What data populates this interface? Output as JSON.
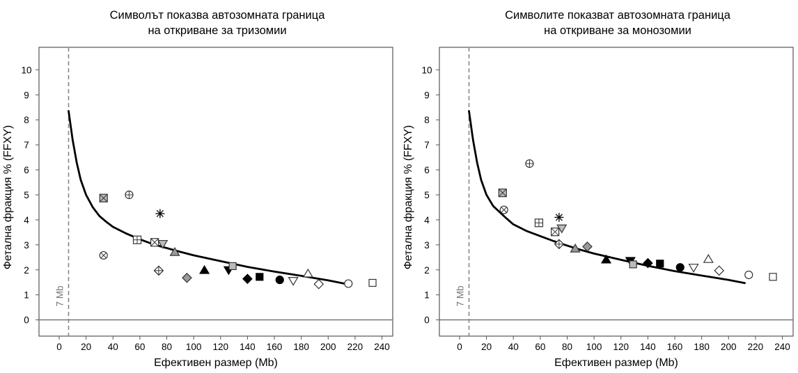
{
  "chart_data": [
    {
      "type": "scatter",
      "title_lines": [
        "Символът показва автозомната граница",
        "на откриване за тризомии"
      ],
      "xlabel": "Ефективен размер (Mb)",
      "ylabel": "Фетална фракция % (FFXY)",
      "xlim": [
        -15,
        248
      ],
      "ylim": [
        -0.65,
        10.9
      ],
      "xticks": [
        "0",
        "20",
        "40",
        "60",
        "80",
        "100",
        "120",
        "140",
        "160",
        "180",
        "200",
        "220",
        "240"
      ],
      "yticks": [
        "0",
        "1",
        "2",
        "3",
        "4",
        "5",
        "6",
        "7",
        "8",
        "9",
        "10"
      ],
      "grid": false,
      "reference_line": {
        "x": 7,
        "label": "7 Mb"
      },
      "zero_line": {
        "y": 0
      },
      "curve": [
        [
          7,
          8.35
        ],
        [
          10,
          7.2
        ],
        [
          13,
          6.3
        ],
        [
          16,
          5.6
        ],
        [
          20,
          5.0
        ],
        [
          25,
          4.5
        ],
        [
          30,
          4.15
        ],
        [
          35,
          3.92
        ],
        [
          40,
          3.72
        ],
        [
          50,
          3.45
        ],
        [
          60,
          3.22
        ],
        [
          70,
          3.02
        ],
        [
          80,
          2.87
        ],
        [
          90,
          2.72
        ],
        [
          100,
          2.58
        ],
        [
          120,
          2.35
        ],
        [
          140,
          2.12
        ],
        [
          160,
          1.93
        ],
        [
          180,
          1.76
        ],
        [
          200,
          1.58
        ],
        [
          212,
          1.45
        ]
      ],
      "points": [
        {
          "x": 33,
          "y": 4.87,
          "marker": "square-x",
          "fill": "#bbbbbb"
        },
        {
          "x": 52,
          "y": 5.0,
          "marker": "circle-plus",
          "fill": "#ffffff"
        },
        {
          "x": 75,
          "y": 4.25,
          "marker": "asterisk",
          "fill": "#000000"
        },
        {
          "x": 58,
          "y": 3.2,
          "marker": "square-plus",
          "fill": "#ffffff"
        },
        {
          "x": 71,
          "y": 3.1,
          "marker": "square-x",
          "fill": "#ffffff"
        },
        {
          "x": 77,
          "y": 3.05,
          "marker": "triangle-down",
          "fill": "#bbbbbb"
        },
        {
          "x": 86,
          "y": 2.7,
          "marker": "triangle-up",
          "fill": "#999999"
        },
        {
          "x": 33,
          "y": 2.58,
          "marker": "circle-x",
          "fill": "#ffffff"
        },
        {
          "x": 74,
          "y": 1.97,
          "marker": "diamond-plus",
          "fill": "#ffffff"
        },
        {
          "x": 95,
          "y": 1.68,
          "marker": "diamond",
          "fill": "#999999"
        },
        {
          "x": 108,
          "y": 1.98,
          "marker": "triangle-up",
          "fill": "#000000"
        },
        {
          "x": 126,
          "y": 2.0,
          "marker": "triangle-down",
          "fill": "#000000"
        },
        {
          "x": 129,
          "y": 2.15,
          "marker": "square",
          "fill": "#bbbbbb"
        },
        {
          "x": 140,
          "y": 1.64,
          "marker": "diamond",
          "fill": "#000000"
        },
        {
          "x": 149,
          "y": 1.72,
          "marker": "square",
          "fill": "#000000"
        },
        {
          "x": 164,
          "y": 1.6,
          "marker": "circle",
          "fill": "#000000"
        },
        {
          "x": 174,
          "y": 1.57,
          "marker": "triangle-down",
          "fill": "#ffffff"
        },
        {
          "x": 185,
          "y": 1.84,
          "marker": "triangle-up",
          "fill": "#ffffff"
        },
        {
          "x": 193,
          "y": 1.43,
          "marker": "diamond",
          "fill": "#ffffff"
        },
        {
          "x": 215,
          "y": 1.45,
          "marker": "circle",
          "fill": "#ffffff"
        },
        {
          "x": 233,
          "y": 1.48,
          "marker": "square",
          "fill": "#ffffff"
        }
      ]
    },
    {
      "type": "scatter",
      "title_lines": [
        "Символите показват автозомната граница",
        "на откриване за монозомии"
      ],
      "xlabel": "Ефективен размер (Mb)",
      "ylabel": "Фетална фракция % (FFXY)",
      "xlim": [
        -15,
        248
      ],
      "ylim": [
        -0.65,
        10.9
      ],
      "xticks": [
        "0",
        "20",
        "40",
        "60",
        "80",
        "100",
        "120",
        "140",
        "160",
        "180",
        "200",
        "220",
        "240"
      ],
      "yticks": [
        "0",
        "1",
        "2",
        "3",
        "4",
        "5",
        "6",
        "7",
        "8",
        "9",
        "10"
      ],
      "grid": false,
      "reference_line": {
        "x": 7,
        "label": "7 Mb"
      },
      "zero_line": {
        "y": 0
      },
      "curve": [
        [
          7,
          8.35
        ],
        [
          10,
          7.2
        ],
        [
          13,
          6.3
        ],
        [
          16,
          5.6
        ],
        [
          20,
          5.0
        ],
        [
          25,
          4.55
        ],
        [
          30,
          4.3
        ],
        [
          35,
          4.05
        ],
        [
          40,
          3.82
        ],
        [
          50,
          3.55
        ],
        [
          60,
          3.35
        ],
        [
          70,
          3.15
        ],
        [
          80,
          2.97
        ],
        [
          90,
          2.8
        ],
        [
          100,
          2.65
        ],
        [
          120,
          2.4
        ],
        [
          140,
          2.16
        ],
        [
          160,
          1.95
        ],
        [
          180,
          1.77
        ],
        [
          200,
          1.6
        ],
        [
          212,
          1.47
        ]
      ],
      "points": [
        {
          "x": 52,
          "y": 6.25,
          "marker": "circle-plus",
          "fill": "#ffffff"
        },
        {
          "x": 32,
          "y": 5.08,
          "marker": "square-x",
          "fill": "#bbbbbb"
        },
        {
          "x": 33,
          "y": 4.4,
          "marker": "circle-x",
          "fill": "#ffffff"
        },
        {
          "x": 74,
          "y": 4.1,
          "marker": "asterisk",
          "fill": "#000000"
        },
        {
          "x": 59,
          "y": 3.88,
          "marker": "square-plus",
          "fill": "#ffffff"
        },
        {
          "x": 76,
          "y": 3.67,
          "marker": "triangle-down",
          "fill": "#bbbbbb"
        },
        {
          "x": 71,
          "y": 3.52,
          "marker": "square-x",
          "fill": "#ffffff"
        },
        {
          "x": 74,
          "y": 3.03,
          "marker": "diamond-plus",
          "fill": "#ffffff"
        },
        {
          "x": 95,
          "y": 2.93,
          "marker": "diamond",
          "fill": "#999999"
        },
        {
          "x": 86,
          "y": 2.84,
          "marker": "triangle-up",
          "fill": "#999999"
        },
        {
          "x": 109,
          "y": 2.4,
          "marker": "triangle-up",
          "fill": "#000000"
        },
        {
          "x": 127,
          "y": 2.37,
          "marker": "triangle-down",
          "fill": "#000000"
        },
        {
          "x": 129,
          "y": 2.22,
          "marker": "square",
          "fill": "#bbbbbb"
        },
        {
          "x": 140,
          "y": 2.27,
          "marker": "diamond",
          "fill": "#000000"
        },
        {
          "x": 149,
          "y": 2.25,
          "marker": "square",
          "fill": "#000000"
        },
        {
          "x": 164,
          "y": 2.1,
          "marker": "circle",
          "fill": "#000000"
        },
        {
          "x": 174,
          "y": 2.1,
          "marker": "triangle-down",
          "fill": "#ffffff"
        },
        {
          "x": 185,
          "y": 2.42,
          "marker": "triangle-up",
          "fill": "#ffffff"
        },
        {
          "x": 193,
          "y": 1.97,
          "marker": "diamond",
          "fill": "#ffffff"
        },
        {
          "x": 215,
          "y": 1.8,
          "marker": "circle",
          "fill": "#ffffff"
        },
        {
          "x": 233,
          "y": 1.72,
          "marker": "square",
          "fill": "#ffffff"
        }
      ]
    }
  ]
}
